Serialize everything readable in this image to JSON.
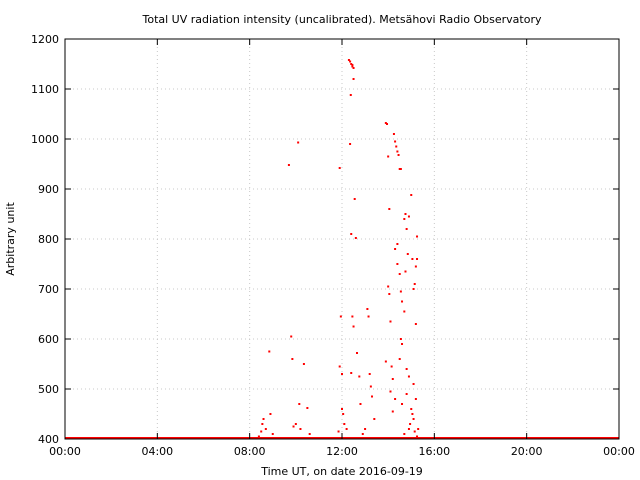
{
  "chart_data": {
    "type": "scatter",
    "title": "Total UV radiation intensity (uncalibrated). Metsähovi Radio Observatory",
    "xlabel": "Time UT, on date 2016-09-19",
    "ylabel": "Arbitrary unit",
    "xlim": [
      0,
      24
    ],
    "ylim": [
      400,
      1200
    ],
    "x_ticks": [
      0,
      4,
      8,
      12,
      16,
      20,
      24
    ],
    "x_tick_labels": [
      "00:00",
      "04:00",
      "08:00",
      "12:00",
      "16:00",
      "20:00",
      "00:00"
    ],
    "y_ticks": [
      400,
      500,
      600,
      700,
      800,
      900,
      1000,
      1100,
      1200
    ],
    "y_tick_labels": [
      "400",
      "500",
      "600",
      "700",
      "800",
      "900",
      "1000",
      "1100",
      "1200"
    ],
    "grid": true,
    "legend": "none",
    "color": "#ff0000",
    "baseline_value": 400,
    "points": [
      [
        8.4,
        405
      ],
      [
        8.5,
        415
      ],
      [
        8.55,
        430
      ],
      [
        8.6,
        440
      ],
      [
        8.7,
        420
      ],
      [
        8.9,
        450
      ],
      [
        8.85,
        575
      ],
      [
        9.0,
        410
      ],
      [
        9.7,
        948
      ],
      [
        9.8,
        605
      ],
      [
        9.85,
        560
      ],
      [
        9.9,
        425
      ],
      [
        10.0,
        430
      ],
      [
        10.1,
        993
      ],
      [
        10.15,
        470
      ],
      [
        10.2,
        420
      ],
      [
        10.35,
        550
      ],
      [
        10.5,
        462
      ],
      [
        10.6,
        410
      ],
      [
        11.9,
        942
      ],
      [
        11.95,
        645
      ],
      [
        12.0,
        530
      ],
      [
        11.9,
        545
      ],
      [
        12.0,
        460
      ],
      [
        12.05,
        450
      ],
      [
        12.1,
        430
      ],
      [
        11.85,
        415
      ],
      [
        12.2,
        420
      ],
      [
        12.3,
        1158
      ],
      [
        12.35,
        1155
      ],
      [
        12.4,
        1150
      ],
      [
        12.45,
        1145
      ],
      [
        12.5,
        1142
      ],
      [
        12.45,
        1148
      ],
      [
        12.38,
        1088
      ],
      [
        12.5,
        1120
      ],
      [
        12.35,
        990
      ],
      [
        12.4,
        810
      ],
      [
        12.45,
        645
      ],
      [
        12.5,
        625
      ],
      [
        12.55,
        880
      ],
      [
        12.6,
        802
      ],
      [
        12.65,
        572
      ],
      [
        12.75,
        525
      ],
      [
        12.4,
        532
      ],
      [
        12.8,
        470
      ],
      [
        13.1,
        660
      ],
      [
        13.15,
        645
      ],
      [
        13.2,
        530
      ],
      [
        13.25,
        505
      ],
      [
        13.3,
        485
      ],
      [
        13.0,
        420
      ],
      [
        12.9,
        410
      ],
      [
        13.4,
        440
      ],
      [
        13.9,
        1032
      ],
      [
        13.95,
        1030
      ],
      [
        14.0,
        965
      ],
      [
        14.05,
        860
      ],
      [
        14.0,
        705
      ],
      [
        14.05,
        690
      ],
      [
        14.1,
        635
      ],
      [
        14.15,
        545
      ],
      [
        14.2,
        520
      ],
      [
        14.1,
        495
      ],
      [
        13.9,
        555
      ],
      [
        14.25,
        1010
      ],
      [
        14.3,
        995
      ],
      [
        14.35,
        985
      ],
      [
        14.4,
        975
      ],
      [
        14.45,
        968
      ],
      [
        14.3,
        780
      ],
      [
        14.4,
        790
      ],
      [
        14.5,
        940
      ],
      [
        14.55,
        940
      ],
      [
        14.4,
        750
      ],
      [
        14.5,
        730
      ],
      [
        14.55,
        695
      ],
      [
        14.6,
        675
      ],
      [
        14.6,
        590
      ],
      [
        14.55,
        600
      ],
      [
        14.5,
        560
      ],
      [
        14.6,
        470
      ],
      [
        14.3,
        480
      ],
      [
        14.2,
        455
      ],
      [
        14.7,
        840
      ],
      [
        14.75,
        850
      ],
      [
        14.8,
        820
      ],
      [
        14.9,
        845
      ],
      [
        14.85,
        770
      ],
      [
        14.75,
        735
      ],
      [
        14.7,
        655
      ],
      [
        14.8,
        540
      ],
      [
        14.9,
        525
      ],
      [
        14.8,
        490
      ],
      [
        15.0,
        888
      ],
      [
        15.05,
        760
      ],
      [
        15.1,
        700
      ],
      [
        15.15,
        710
      ],
      [
        15.2,
        745
      ],
      [
        15.25,
        805
      ],
      [
        15.25,
        760
      ],
      [
        15.2,
        630
      ],
      [
        15.1,
        510
      ],
      [
        15.2,
        480
      ],
      [
        15.0,
        460
      ],
      [
        15.05,
        450
      ],
      [
        15.1,
        440
      ],
      [
        14.95,
        430
      ],
      [
        14.9,
        420
      ],
      [
        15.15,
        415
      ],
      [
        15.3,
        420
      ],
      [
        14.7,
        410
      ],
      [
        15.25,
        405
      ]
    ]
  }
}
